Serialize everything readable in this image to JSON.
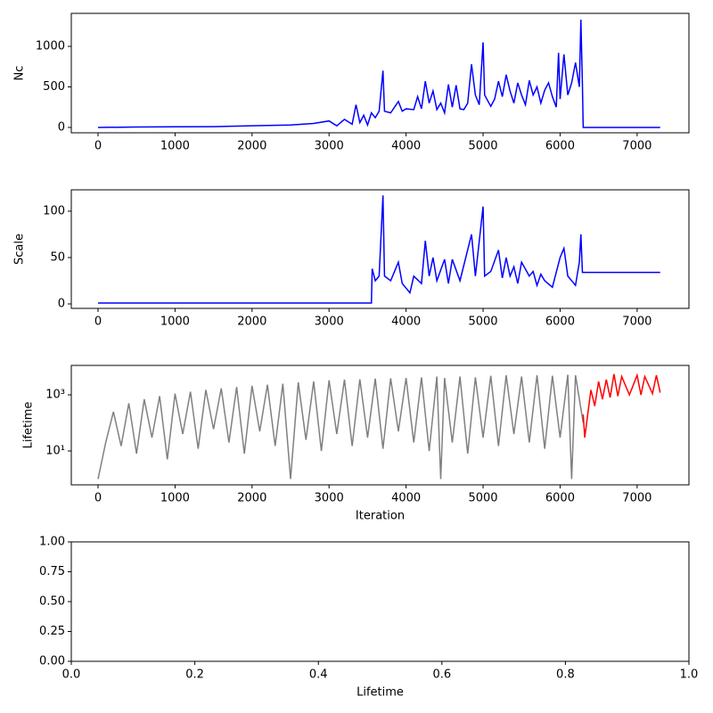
{
  "chart_data": [
    {
      "type": "line",
      "ylabel": "Nc",
      "x": [
        0,
        500,
        1000,
        1500,
        2000,
        2500,
        2800,
        3000,
        3100,
        3200,
        3300,
        3350,
        3400,
        3450,
        3500,
        3550,
        3600,
        3650,
        3700,
        3720,
        3800,
        3900,
        3950,
        4000,
        4100,
        4150,
        4200,
        4250,
        4300,
        4350,
        4400,
        4450,
        4500,
        4550,
        4600,
        4650,
        4700,
        4750,
        4800,
        4850,
        4900,
        4950,
        5000,
        5020,
        5100,
        5150,
        5200,
        5250,
        5300,
        5350,
        5400,
        5450,
        5500,
        5550,
        5600,
        5650,
        5700,
        5750,
        5800,
        5850,
        5900,
        5950,
        5980,
        6000,
        6050,
        6100,
        6150,
        6200,
        6250,
        6270,
        6290,
        6300,
        7300
      ],
      "series": [
        {
          "color": "#0000ff",
          "values": [
            0,
            5,
            8,
            10,
            20,
            30,
            50,
            80,
            20,
            100,
            40,
            280,
            60,
            150,
            30,
            180,
            120,
            200,
            700,
            200,
            180,
            320,
            200,
            230,
            220,
            380,
            230,
            570,
            300,
            450,
            220,
            300,
            180,
            530,
            250,
            520,
            230,
            220,
            300,
            780,
            400,
            280,
            1050,
            400,
            260,
            350,
            570,
            380,
            650,
            450,
            300,
            550,
            400,
            280,
            580,
            400,
            500,
            300,
            460,
            550,
            380,
            250,
            920,
            350,
            900,
            400,
            550,
            800,
            500,
            1330,
            520,
            0,
            0
          ]
        }
      ],
      "xlim": [
        -347,
        7673
      ],
      "xticks": [
        0,
        1000,
        2000,
        3000,
        4000,
        5000,
        6000,
        7000
      ],
      "ylim": [
        -66,
        1407
      ],
      "yticks": [
        0,
        500,
        1000
      ]
    },
    {
      "type": "line",
      "ylabel": "Scale",
      "x": [
        0,
        3550,
        3560,
        3600,
        3650,
        3700,
        3720,
        3800,
        3900,
        3950,
        4050,
        4100,
        4200,
        4250,
        4300,
        4350,
        4400,
        4500,
        4550,
        4600,
        4700,
        4850,
        4900,
        5000,
        5020,
        5100,
        5200,
        5250,
        5300,
        5350,
        5400,
        5450,
        5500,
        5600,
        5650,
        5700,
        5750,
        5800,
        5900,
        6000,
        6050,
        6100,
        6200,
        6250,
        6270,
        6290,
        7300
      ],
      "series": [
        {
          "color": "#0000ff",
          "values": [
            1,
            1,
            38,
            25,
            30,
            117,
            30,
            25,
            45,
            22,
            12,
            30,
            22,
            68,
            30,
            50,
            25,
            48,
            22,
            48,
            25,
            75,
            30,
            105,
            30,
            35,
            58,
            28,
            50,
            30,
            40,
            22,
            45,
            30,
            35,
            20,
            32,
            25,
            18,
            50,
            60,
            30,
            20,
            45,
            75,
            34,
            34
          ]
        }
      ],
      "xlim": [
        -347,
        7673
      ],
      "xticks": [
        0,
        1000,
        2000,
        3000,
        4000,
        5000,
        6000,
        7000
      ],
      "ylim": [
        -4.8,
        123
      ],
      "yticks": [
        0,
        50,
        100
      ]
    },
    {
      "type": "line",
      "ylabel": "Lifetime",
      "xlabel": "Iteration",
      "log_y": true,
      "series": [
        {
          "color": "#808080",
          "x": [
            0,
            100,
            200,
            300,
            400,
            500,
            600,
            700,
            800,
            900,
            1000,
            1100,
            1200,
            1300,
            1400,
            1500,
            1600,
            1700,
            1800,
            1900,
            2000,
            2100,
            2200,
            2300,
            2400,
            2500,
            2600,
            2700,
            2800,
            2900,
            3000,
            3100,
            3200,
            3300,
            3400,
            3500,
            3600,
            3700,
            3800,
            3900,
            4000,
            4100,
            4200,
            4300,
            4400,
            4450,
            4500,
            4600,
            4700,
            4800,
            4900,
            5000,
            5100,
            5200,
            5300,
            5400,
            5500,
            5600,
            5700,
            5800,
            5900,
            6000,
            6100,
            6150,
            6200,
            6300
          ],
          "values": [
            1,
            20,
            250,
            15,
            500,
            8,
            700,
            30,
            900,
            5,
            1100,
            40,
            1300,
            12,
            1500,
            60,
            1700,
            20,
            1900,
            8,
            2100,
            50,
            2300,
            15,
            2500,
            1,
            2800,
            25,
            3000,
            10,
            3300,
            40,
            3500,
            15,
            3600,
            30,
            3800,
            12,
            3900,
            50,
            4000,
            20,
            4200,
            10,
            4500,
            1,
            4000,
            20,
            4500,
            8,
            4200,
            30,
            4800,
            15,
            5000,
            40,
            4500,
            20,
            5000,
            12,
            4800,
            30,
            5200,
            1,
            5000,
            100
          ]
        },
        {
          "color": "#ff0000",
          "x": [
            6300,
            6320,
            6400,
            6450,
            6500,
            6550,
            6600,
            6650,
            6700,
            6750,
            6800,
            6900,
            7000,
            7050,
            7100,
            7200,
            7250,
            7300
          ],
          "values": [
            200,
            30,
            1500,
            400,
            3000,
            700,
            3500,
            800,
            5500,
            900,
            4500,
            1000,
            5000,
            1000,
            4500,
            1100,
            5000,
            1200
          ]
        }
      ],
      "xlim": [
        -347,
        7673
      ],
      "xticks": [
        0,
        1000,
        2000,
        3000,
        4000,
        5000,
        6000,
        7000
      ],
      "ylim": [
        0.62,
        11220
      ],
      "yticks": [
        {
          "value": 10,
          "label": "10¹"
        },
        {
          "value": 1000,
          "label": "10³"
        }
      ]
    },
    {
      "type": "line",
      "xlabel": "Lifetime",
      "series": [],
      "xlim": [
        0,
        1
      ],
      "xticks": [
        {
          "value": 0,
          "label": "0.0"
        },
        {
          "value": 0.2,
          "label": "0.2"
        },
        {
          "value": 0.4,
          "label": "0.4"
        },
        {
          "value": 0.6,
          "label": "0.6"
        },
        {
          "value": 0.8,
          "label": "0.8"
        },
        {
          "value": 1,
          "label": "1.0"
        }
      ],
      "ylim": [
        0,
        1
      ],
      "yticks": [
        {
          "value": 0,
          "label": "0.00"
        },
        {
          "value": 0.25,
          "label": "0.25"
        },
        {
          "value": 0.5,
          "label": "0.50"
        },
        {
          "value": 0.75,
          "label": "0.75"
        },
        {
          "value": 1,
          "label": "1.00"
        }
      ]
    }
  ]
}
